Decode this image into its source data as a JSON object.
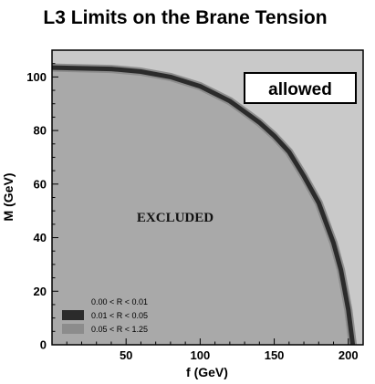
{
  "chart_data": {
    "type": "area",
    "title": "L3 Limits on the Brane Tension",
    "xlabel": "f (GeV)",
    "ylabel": "M (GeV)",
    "xlim": [
      0,
      210
    ],
    "ylim": [
      0,
      110
    ],
    "x_ticks": [
      50,
      100,
      150,
      200
    ],
    "y_ticks": [
      0,
      20,
      40,
      60,
      80,
      100
    ],
    "grid": false,
    "legend_position": "bottom-left",
    "annotations": {
      "excluded": "EXCLUDED",
      "allowed": "allowed"
    },
    "boundary": {
      "x": [
        0,
        40,
        60,
        80,
        100,
        120,
        140,
        150,
        160,
        170,
        180,
        190,
        195,
        200,
        203
      ],
      "y": [
        103.5,
        103,
        102,
        100,
        96.5,
        91,
        83,
        78,
        72,
        63,
        53,
        38,
        28,
        13,
        0
      ]
    },
    "series": [
      {
        "name": "0.00 < R < 0.01",
        "color": "#a9a9a9"
      },
      {
        "name": "0.01 < R < 0.05",
        "color": "#2b2b2b"
      },
      {
        "name": "0.05 < R < 1.25",
        "color": "#8c8c8c"
      }
    ],
    "colors": {
      "allowed_bg": "#c9c9c9",
      "excluded_fill": "#a9a9a9",
      "band": "#2b2b2b"
    }
  }
}
